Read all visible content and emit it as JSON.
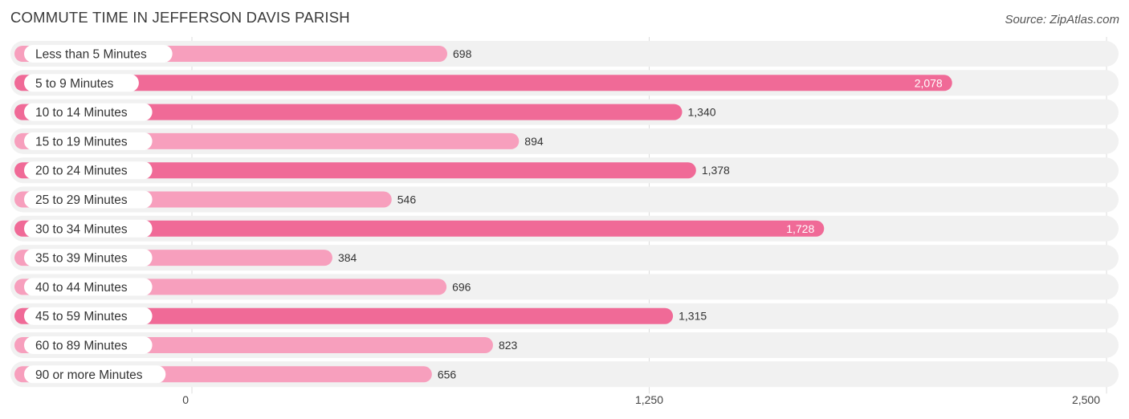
{
  "title": "COMMUTE TIME IN JEFFERSON DAVIS PARISH",
  "source": "Source: ZipAtlas.com",
  "colors": {
    "bar_strong": "#f06a97",
    "bar_light": "#f79fbd",
    "track": "#f1f1f1",
    "grid": "#dcdcdc"
  },
  "chart_data": {
    "type": "bar",
    "orientation": "horizontal",
    "categories": [
      "Less than 5 Minutes",
      "5 to 9 Minutes",
      "10 to 14 Minutes",
      "15 to 19 Minutes",
      "20 to 24 Minutes",
      "25 to 29 Minutes",
      "30 to 34 Minutes",
      "35 to 39 Minutes",
      "40 to 44 Minutes",
      "45 to 59 Minutes",
      "60 to 89 Minutes",
      "90 or more Minutes"
    ],
    "values": [
      698,
      2078,
      1340,
      894,
      1378,
      546,
      1728,
      384,
      696,
      1315,
      823,
      656
    ],
    "value_labels": [
      "698",
      "2,078",
      "1,340",
      "894",
      "1,378",
      "546",
      "1,728",
      "384",
      "696",
      "1,315",
      "823",
      "656"
    ],
    "xlim": [
      0,
      2500
    ],
    "ticks": [
      0,
      1250,
      2500
    ],
    "tick_labels": [
      "0",
      "1,250",
      "2,500"
    ],
    "grid": true
  }
}
